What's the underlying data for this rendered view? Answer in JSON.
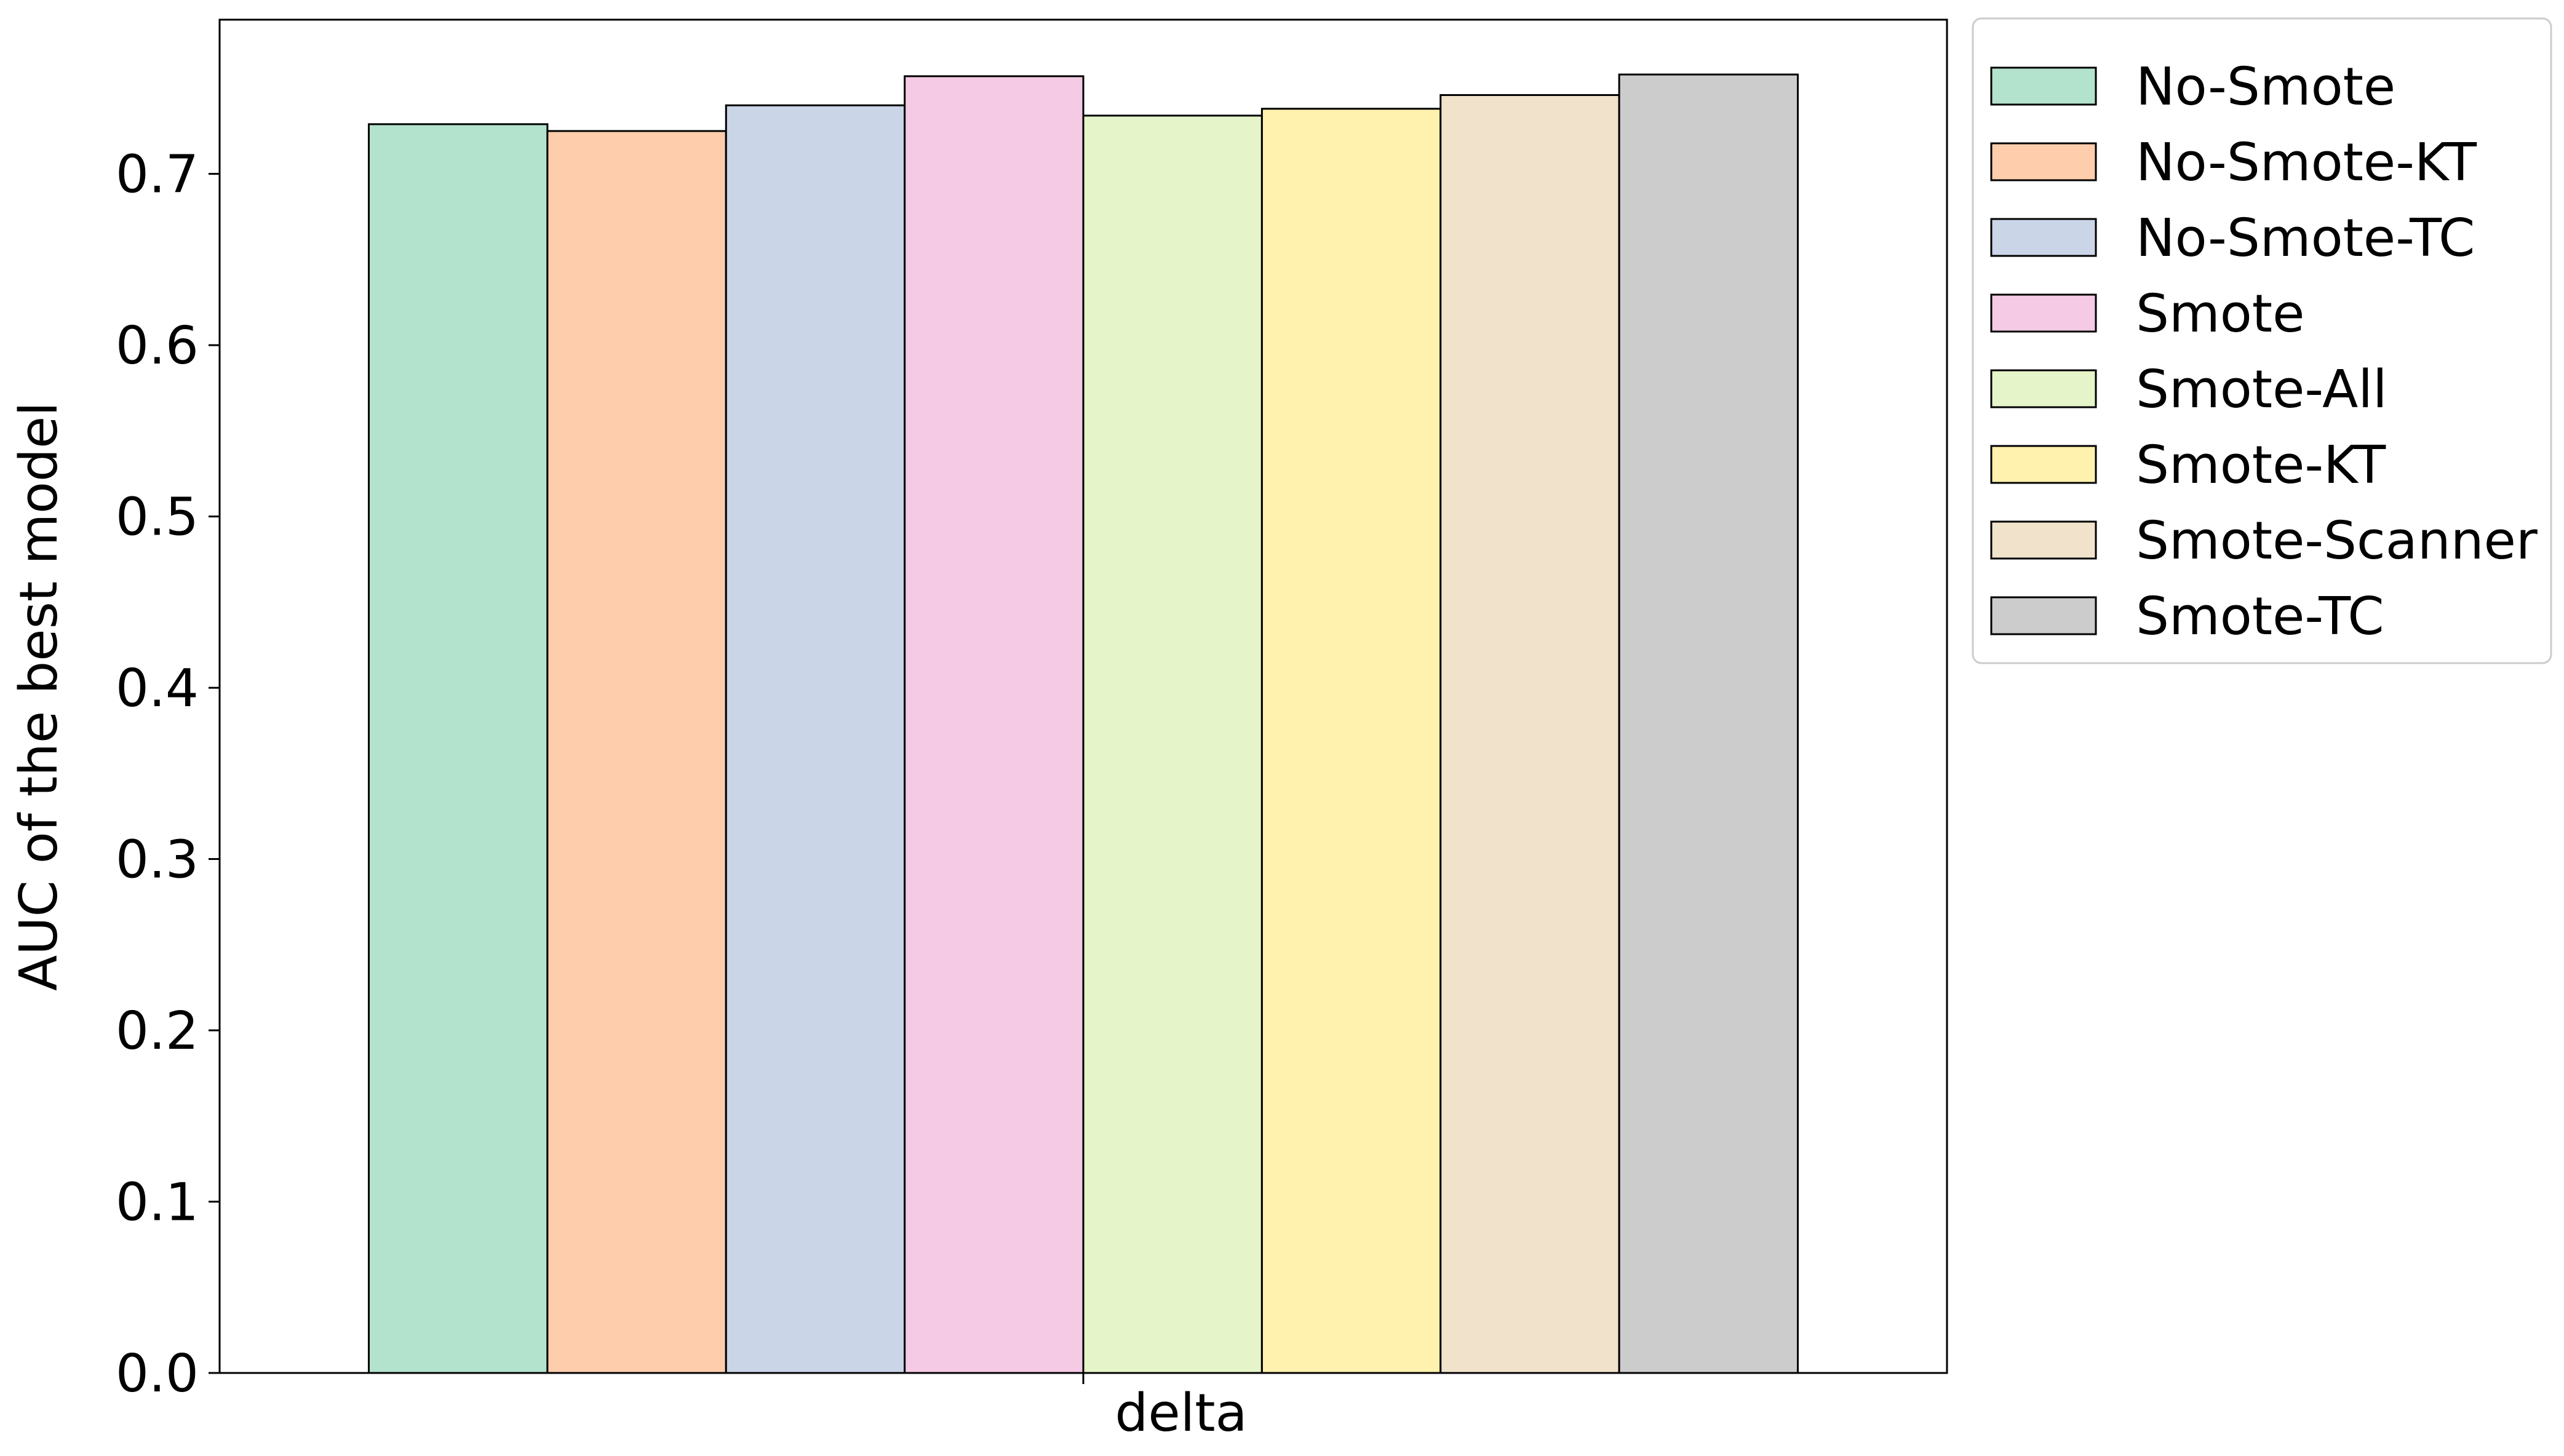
{
  "chart_data": {
    "type": "bar",
    "categories": [
      "delta"
    ],
    "xlabel": "delta",
    "ylabel": "AUC of the best model",
    "ylim": [
      0,
      0.79
    ],
    "yticks": [
      0.0,
      0.1,
      0.2,
      0.3,
      0.4,
      0.5,
      0.6,
      0.7
    ],
    "ytick_labels": [
      "0.0",
      "0.1",
      "0.2",
      "0.3",
      "0.4",
      "0.5",
      "0.6",
      "0.7"
    ],
    "grid": false,
    "legend_position": "outside-top-right",
    "series": [
      {
        "name": "No-Smote",
        "values": [
          0.729
        ],
        "color": "#b3e2cd"
      },
      {
        "name": "No-Smote-KT",
        "values": [
          0.725
        ],
        "color": "#fdcdac"
      },
      {
        "name": "No-Smote-TC",
        "values": [
          0.74
        ],
        "color": "#cbd5e8"
      },
      {
        "name": "Smote",
        "values": [
          0.757
        ],
        "color": "#f4cae4"
      },
      {
        "name": "Smote-All",
        "values": [
          0.734
        ],
        "color": "#e6f5c9"
      },
      {
        "name": "Smote-KT",
        "values": [
          0.738
        ],
        "color": "#fff2ae"
      },
      {
        "name": "Smote-Scanner",
        "values": [
          0.746
        ],
        "color": "#f1e2cc"
      },
      {
        "name": "Smote-TC",
        "values": [
          0.758
        ],
        "color": "#cccccc"
      }
    ]
  }
}
